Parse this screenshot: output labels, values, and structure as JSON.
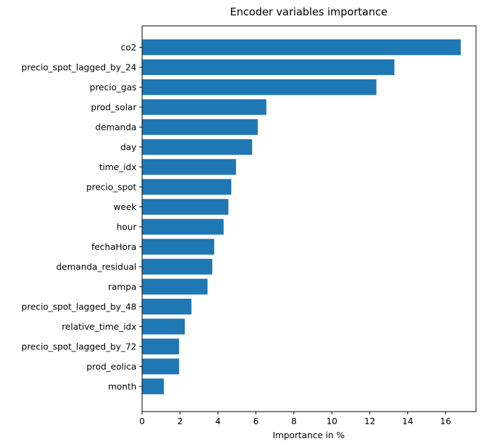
{
  "chart_data": {
    "type": "bar",
    "orientation": "horizontal",
    "title": "Encoder variables importance",
    "xlabel": "Importance in %",
    "ylabel": "",
    "xlim": [
      0,
      17.6
    ],
    "xticks": [
      0,
      2,
      4,
      6,
      8,
      10,
      12,
      14,
      16
    ],
    "grid": false,
    "color": "#1f77b4",
    "categories": [
      "co2",
      "precio_spot_lagged_by_24",
      "precio_gas",
      "prod_solar",
      "demanda",
      "day",
      "time_idx",
      "precio_spot",
      "week",
      "hour",
      "fechaHora",
      "demanda_residual",
      "rampa",
      "precio_spot_lagged_by_48",
      "relative_time_idx",
      "precio_spot_lagged_by_72",
      "prod_eolica",
      "month"
    ],
    "values": [
      16.8,
      13.3,
      12.35,
      6.55,
      6.1,
      5.8,
      4.95,
      4.7,
      4.55,
      4.3,
      3.8,
      3.7,
      3.45,
      2.6,
      2.25,
      1.95,
      1.95,
      1.15
    ]
  }
}
